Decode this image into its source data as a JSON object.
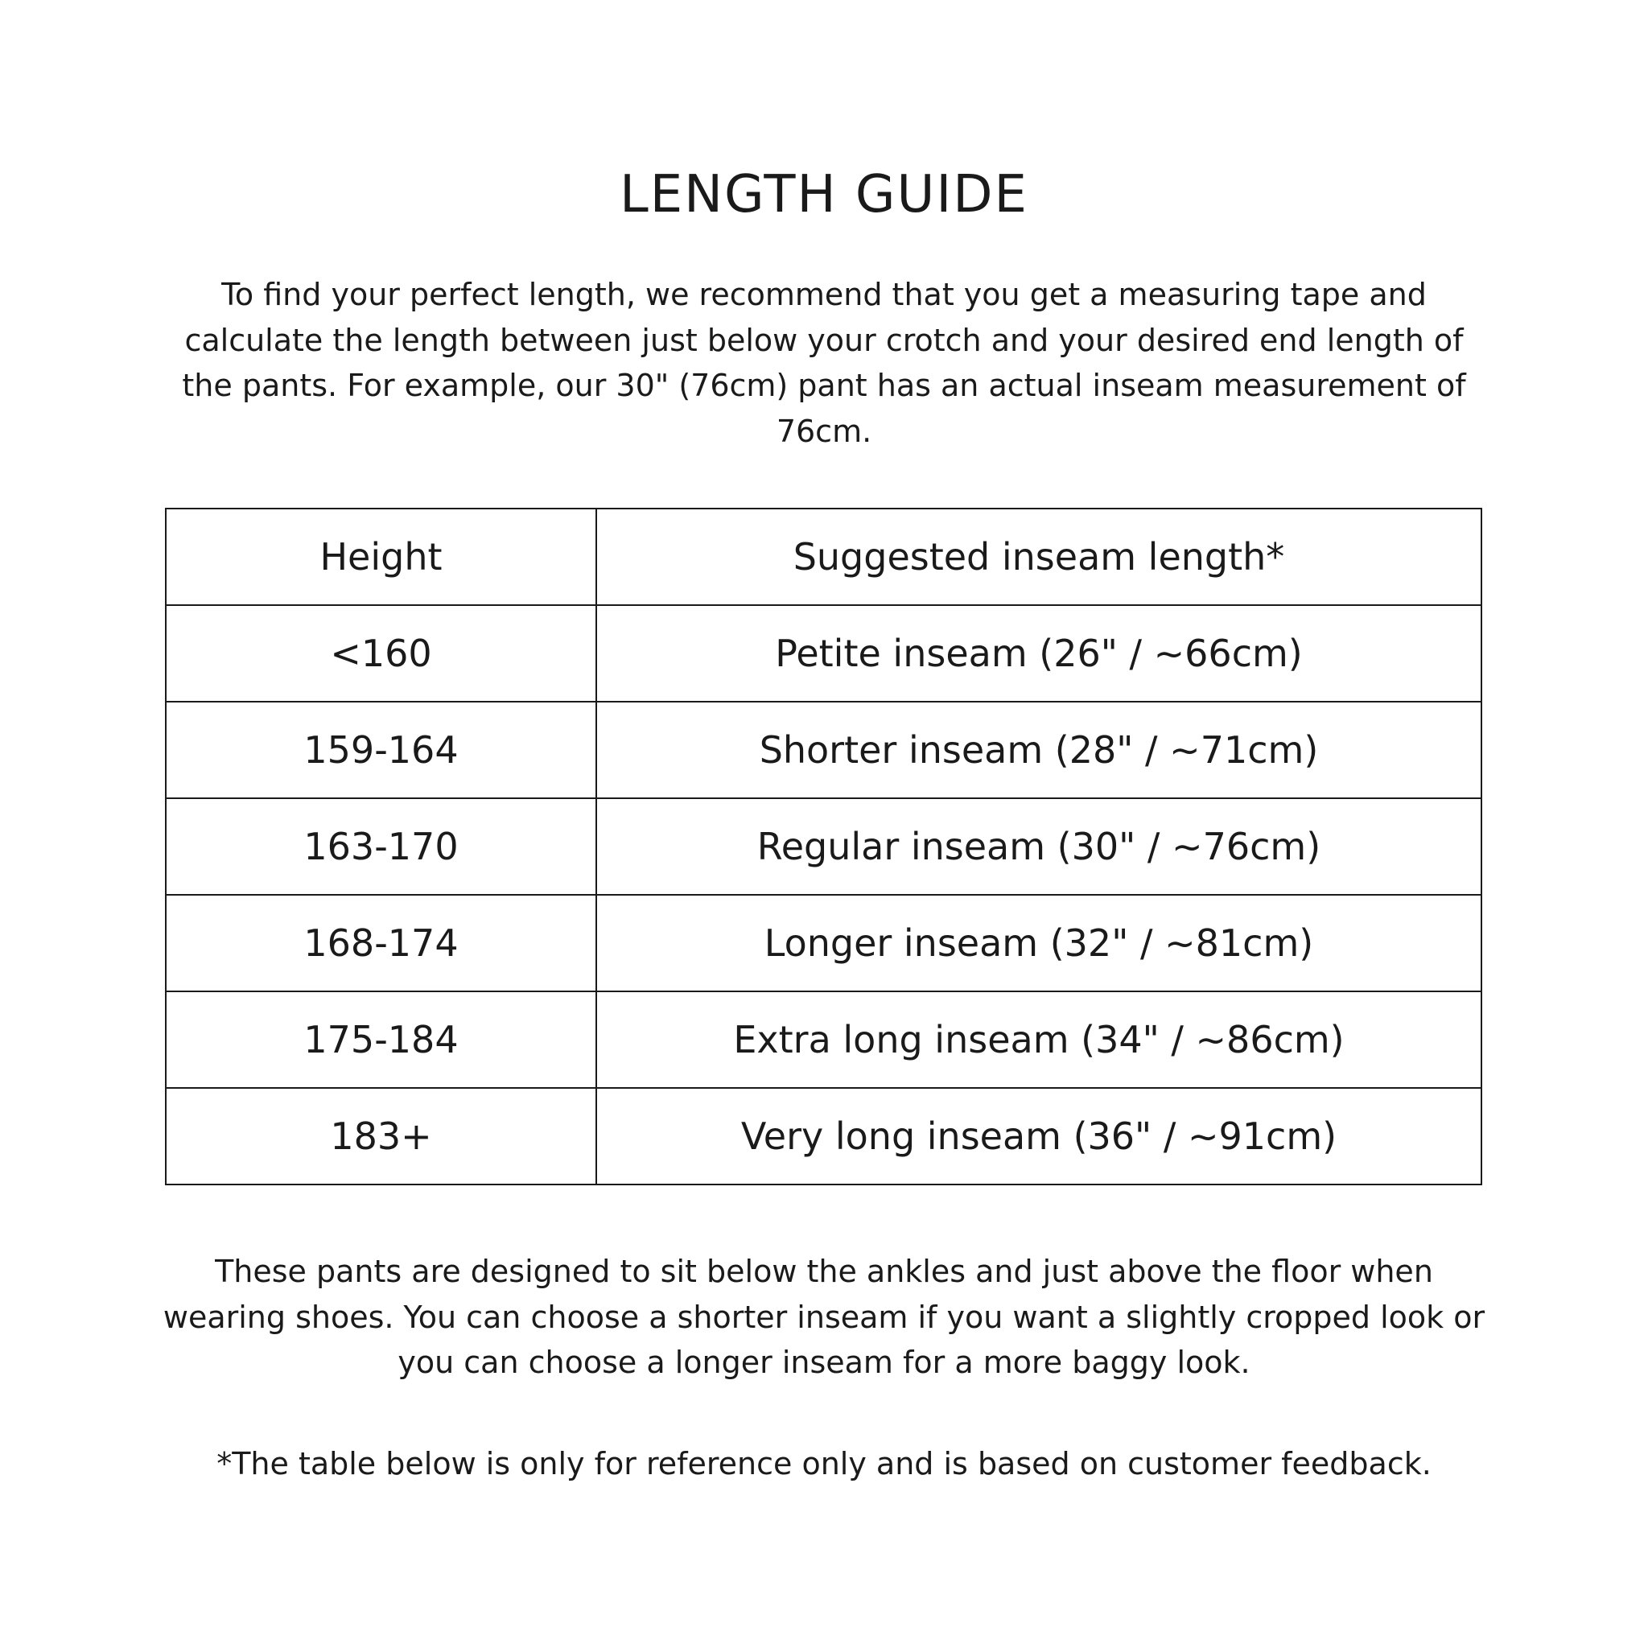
{
  "title": "LENGTH GUIDE",
  "intro": "To find your perfect length, we recommend that you get a measuring tape and calculate the length between just below your crotch and your desired end length of the pants. For example, our 30\" (76cm) pant has an actual inseam measurement of 76cm.",
  "table": {
    "headers": [
      "Height",
      "Suggested inseam length*"
    ],
    "rows": [
      [
        "<160",
        "Petite inseam (26\" / ~66cm)"
      ],
      [
        "159-164",
        "Shorter inseam (28\" / ~71cm)"
      ],
      [
        "163-170",
        "Regular inseam (30\" / ~76cm)"
      ],
      [
        "168-174",
        "Longer inseam (32\" / ~81cm)"
      ],
      [
        "175-184",
        "Extra long inseam (34\" / ~86cm)"
      ],
      [
        "183+",
        "Very long inseam (36\" / ~91cm)"
      ]
    ]
  },
  "outro": "These pants are designed to sit below the ankles and just above the floor when wearing shoes. You can choose a shorter inseam if you want a slightly cropped look or you can choose a longer inseam for a more baggy look.",
  "note": "*The table below is only for reference only and is based on customer feedback."
}
